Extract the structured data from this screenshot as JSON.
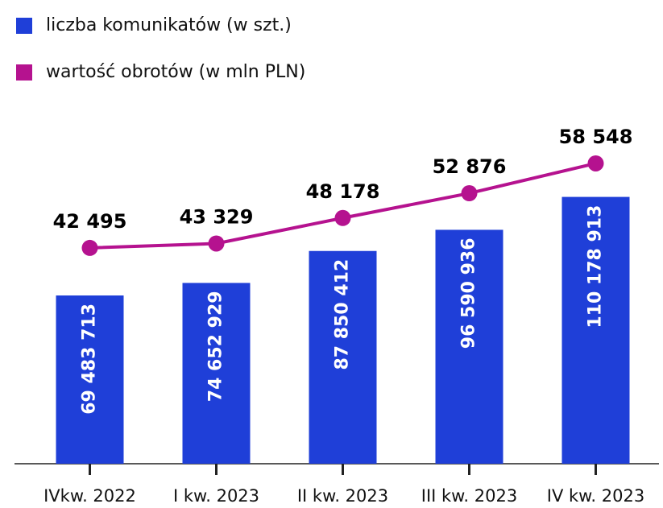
{
  "chart_data": {
    "type": "bar",
    "categories": [
      "IVkw. 2022",
      "I kw. 2023",
      "II kw. 2023",
      "III kw. 2023",
      "IV kw. 2023"
    ],
    "series": [
      {
        "name": "liczba komunikatów (w szt.)",
        "color": "#1f3fd8",
        "type": "bar",
        "values": [
          69483713,
          74652929,
          87850412,
          96590936,
          110178913
        ],
        "value_labels": [
          "69 483 713",
          "74 652 929",
          "87 850 412",
          "96 590 936",
          "110 178 913"
        ]
      },
      {
        "name": "wartość obrotów (w mln PLN)",
        "color": "#b5128f",
        "type": "line",
        "axis": "y2",
        "values": [
          42495,
          43329,
          48178,
          52876,
          58548
        ],
        "value_labels": [
          "42 495",
          "43 329",
          "48 178",
          "52 876",
          "58 548"
        ]
      }
    ],
    "ylim": [
      0,
      125000000
    ],
    "y2lim": [
      1500,
      59000
    ],
    "legend": "top-left"
  }
}
